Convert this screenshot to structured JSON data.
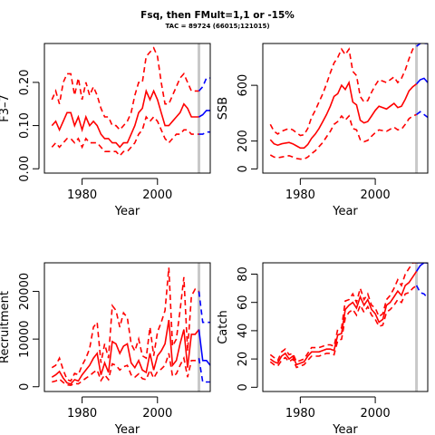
{
  "figure": {
    "title": "Fsq, then FMult=1,1 or -15%",
    "subtitle": "TAC = 89724 (66015;121015)"
  },
  "colors": {
    "historical": "#ff0000",
    "projection": "#0000ff",
    "divider": "#c8c8c8"
  },
  "chart_data": [
    {
      "id": "fbar",
      "type": "line",
      "ylabel": "F̄3–7",
      "xlabel": "Year",
      "xlim": [
        1970,
        2014
      ],
      "ylim": [
        -0.01,
        0.29
      ],
      "xticks": [
        1980,
        2000
      ],
      "yticks": [
        0.0,
        0.1,
        0.2
      ],
      "ytick_labels": [
        "0.00",
        "0.10",
        "0.20"
      ],
      "divider_x": 2011,
      "x": [
        1972,
        1973,
        1974,
        1975,
        1976,
        1977,
        1978,
        1979,
        1980,
        1981,
        1982,
        1983,
        1984,
        1985,
        1986,
        1987,
        1988,
        1989,
        1990,
        1991,
        1992,
        1993,
        1994,
        1995,
        1996,
        1997,
        1998,
        1999,
        2000,
        2001,
        2002,
        2003,
        2004,
        2005,
        2006,
        2007,
        2008,
        2009,
        2010,
        2011
      ],
      "series": [
        {
          "role": "median",
          "style": "solid",
          "values": [
            0.1,
            0.11,
            0.09,
            0.11,
            0.13,
            0.13,
            0.1,
            0.12,
            0.09,
            0.12,
            0.1,
            0.11,
            0.1,
            0.08,
            0.07,
            0.07,
            0.06,
            0.06,
            0.05,
            0.06,
            0.06,
            0.08,
            0.1,
            0.13,
            0.14,
            0.18,
            0.16,
            0.18,
            0.16,
            0.13,
            0.1,
            0.1,
            0.11,
            0.12,
            0.13,
            0.15,
            0.14,
            0.12,
            0.12,
            0.12
          ]
        },
        {
          "role": "upper",
          "style": "dashed",
          "values": [
            0.16,
            0.18,
            0.15,
            0.2,
            0.22,
            0.22,
            0.17,
            0.21,
            0.16,
            0.2,
            0.17,
            0.19,
            0.17,
            0.14,
            0.12,
            0.12,
            0.1,
            0.1,
            0.09,
            0.1,
            0.11,
            0.13,
            0.17,
            0.2,
            0.2,
            0.26,
            0.27,
            0.28,
            0.26,
            0.2,
            0.15,
            0.15,
            0.17,
            0.19,
            0.21,
            0.22,
            0.2,
            0.18,
            0.18,
            0.18
          ]
        },
        {
          "role": "lower",
          "style": "dashed",
          "values": [
            0.05,
            0.06,
            0.05,
            0.06,
            0.07,
            0.07,
            0.06,
            0.07,
            0.05,
            0.07,
            0.06,
            0.06,
            0.06,
            0.05,
            0.04,
            0.04,
            0.04,
            0.04,
            0.03,
            0.04,
            0.04,
            0.05,
            0.06,
            0.08,
            0.09,
            0.12,
            0.11,
            0.12,
            0.11,
            0.09,
            0.07,
            0.06,
            0.07,
            0.08,
            0.08,
            0.09,
            0.09,
            0.08,
            0.08,
            0.08
          ]
        }
      ],
      "projection": {
        "x": [
          2011,
          2012,
          2013,
          2014
        ],
        "series": [
          {
            "role": "median",
            "style": "solid",
            "values": [
              0.12,
              0.125,
              0.135,
              0.135
            ]
          },
          {
            "role": "upper",
            "style": "dashed",
            "values": [
              0.18,
              0.19,
              0.21,
              0.21
            ]
          },
          {
            "role": "lower",
            "style": "dashed",
            "values": [
              0.08,
              0.08,
              0.085,
              0.085
            ]
          }
        ]
      }
    },
    {
      "id": "ssb",
      "type": "line",
      "ylabel": "SSB",
      "xlabel": "Year",
      "xlim": [
        1970,
        2014
      ],
      "ylim": [
        -30,
        900
      ],
      "xticks": [
        1980,
        2000
      ],
      "yticks": [
        0,
        200,
        600
      ],
      "ytick_labels": [
        "0",
        "200",
        "600"
      ],
      "divider_x": 2011,
      "x": [
        1972,
        1973,
        1974,
        1975,
        1976,
        1977,
        1978,
        1979,
        1980,
        1981,
        1982,
        1983,
        1984,
        1985,
        1986,
        1987,
        1988,
        1989,
        1990,
        1991,
        1992,
        1993,
        1994,
        1995,
        1996,
        1997,
        1998,
        1999,
        2000,
        2001,
        2002,
        2003,
        2004,
        2005,
        2006,
        2007,
        2008,
        2009,
        2010,
        2011
      ],
      "series": [
        {
          "role": "median",
          "style": "solid",
          "values": [
            210,
            180,
            170,
            180,
            185,
            190,
            180,
            165,
            150,
            150,
            175,
            220,
            250,
            290,
            340,
            390,
            450,
            520,
            540,
            600,
            570,
            620,
            480,
            460,
            350,
            330,
            340,
            380,
            420,
            450,
            440,
            430,
            450,
            470,
            440,
            450,
            500,
            560,
            590,
            610
          ]
        },
        {
          "role": "upper",
          "style": "dashed",
          "values": [
            320,
            270,
            250,
            270,
            280,
            290,
            280,
            260,
            240,
            245,
            290,
            370,
            420,
            480,
            540,
            610,
            690,
            760,
            800,
            860,
            820,
            860,
            700,
            670,
            520,
            480,
            490,
            550,
            600,
            640,
            630,
            620,
            640,
            660,
            620,
            650,
            710,
            790,
            860,
            880
          ]
        },
        {
          "role": "lower",
          "style": "dashed",
          "values": [
            100,
            85,
            80,
            85,
            90,
            95,
            85,
            75,
            70,
            70,
            85,
            110,
            130,
            160,
            190,
            230,
            270,
            320,
            340,
            380,
            350,
            380,
            290,
            280,
            210,
            195,
            205,
            235,
            260,
            280,
            275,
            270,
            285,
            300,
            280,
            285,
            320,
            360,
            380,
            390
          ]
        }
      ],
      "projection": {
        "x": [
          2011,
          2012,
          2013,
          2014
        ],
        "series": [
          {
            "role": "median",
            "style": "solid",
            "values": [
              610,
              640,
              650,
              620
            ]
          },
          {
            "role": "upper",
            "style": "dashed",
            "values": [
              880,
              900,
              900,
              900
            ]
          },
          {
            "role": "lower",
            "style": "dashed",
            "values": [
              390,
              410,
              390,
              370
            ]
          }
        ]
      }
    },
    {
      "id": "recruitment",
      "type": "line",
      "ylabel": "Recruitment",
      "xlabel": "Year",
      "xlim": [
        1970,
        2014
      ],
      "ylim": [
        -1000,
        26000
      ],
      "xticks": [
        1980,
        2000
      ],
      "yticks": [
        0,
        10000,
        20000
      ],
      "ytick_labels": [
        "0",
        "10000",
        "20000"
      ],
      "divider_x": 2011,
      "x": [
        1972,
        1973,
        1974,
        1975,
        1976,
        1977,
        1978,
        1979,
        1980,
        1981,
        1982,
        1983,
        1984,
        1985,
        1986,
        1987,
        1988,
        1989,
        1990,
        1991,
        1992,
        1993,
        1994,
        1995,
        1996,
        1997,
        1998,
        1999,
        2000,
        2001,
        2002,
        2003,
        2004,
        2005,
        2006,
        2007,
        2008,
        2009,
        2010,
        2011
      ],
      "series": [
        {
          "role": "median",
          "style": "solid",
          "values": [
            2000,
            2500,
            3200,
            1800,
            800,
            600,
            1500,
            1200,
            2500,
            3500,
            4500,
            6000,
            7000,
            2500,
            5000,
            3000,
            9500,
            9000,
            7000,
            8500,
            9000,
            5000,
            4000,
            5500,
            3500,
            3000,
            7000,
            3500,
            6500,
            7500,
            9000,
            14000,
            4500,
            5500,
            9000,
            12000,
            4000,
            11000,
            11000,
            12000
          ]
        },
        {
          "role": "upper",
          "style": "dashed",
          "values": [
            4000,
            4500,
            6000,
            3500,
            1500,
            1200,
            2800,
            2500,
            4500,
            6000,
            8000,
            12500,
            13500,
            5000,
            9000,
            6000,
            17000,
            16000,
            12500,
            15500,
            14500,
            9000,
            7500,
            10000,
            6500,
            6000,
            12500,
            6500,
            11500,
            13500,
            16000,
            25000,
            8500,
            10000,
            16000,
            23000,
            7500,
            19000,
            20500,
            20000
          ]
        },
        {
          "role": "lower",
          "style": "dashed",
          "values": [
            1000,
            1200,
            1600,
            900,
            400,
            300,
            700,
            600,
            1200,
            1800,
            2300,
            3000,
            3500,
            1300,
            2500,
            1500,
            4800,
            4500,
            3500,
            4200,
            4500,
            2500,
            2000,
            2700,
            1700,
            1500,
            3500,
            1800,
            3200,
            3700,
            4500,
            7000,
            2200,
            2700,
            4500,
            6000,
            2000,
            5500,
            5500,
            6000
          ]
        }
      ],
      "projection": {
        "x": [
          2011,
          2012,
          2013,
          2014
        ],
        "series": [
          {
            "role": "median",
            "style": "solid",
            "values": [
              12000,
              5500,
              5500,
              4500
            ]
          },
          {
            "role": "upper",
            "style": "dashed",
            "values": [
              20000,
              13500,
              13500,
              13500
            ]
          },
          {
            "role": "lower",
            "style": "dashed",
            "values": [
              6000,
              1000,
              1000,
              1000
            ]
          }
        ]
      }
    },
    {
      "id": "catch",
      "type": "line",
      "ylabel": "Catch",
      "xlabel": "Year",
      "xlim": [
        1970,
        2014
      ],
      "ylim": [
        -3,
        88
      ],
      "xticks": [
        1980,
        2000
      ],
      "yticks": [
        0,
        20,
        40,
        60,
        80
      ],
      "ytick_labels": [
        "0",
        "20",
        "40",
        "60",
        "80"
      ],
      "divider_x": 2011,
      "x": [
        1972,
        1973,
        1974,
        1975,
        1976,
        1977,
        1978,
        1979,
        1980,
        1981,
        1982,
        1983,
        1984,
        1985,
        1986,
        1987,
        1988,
        1989,
        1990,
        1991,
        1992,
        1993,
        1994,
        1995,
        1996,
        1997,
        1998,
        1999,
        2000,
        2001,
        2002,
        2003,
        2004,
        2005,
        2006,
        2007,
        2008,
        2009,
        2010,
        2011
      ],
      "series": [
        {
          "role": "median",
          "style": "solid",
          "values": [
            20,
            18,
            17,
            22,
            24,
            20,
            22,
            16,
            17,
            18,
            22,
            25,
            25,
            25,
            26,
            27,
            27,
            26,
            37,
            38,
            55,
            58,
            60,
            56,
            64,
            58,
            62,
            55,
            52,
            46,
            48,
            58,
            60,
            64,
            68,
            65,
            72,
            74,
            78,
            82
          ]
        },
        {
          "role": "upper",
          "style": "dashed",
          "values": [
            23,
            21,
            19,
            25,
            27,
            23,
            24,
            18,
            19,
            20,
            24,
            28,
            28,
            28,
            29,
            30,
            30,
            29,
            41,
            42,
            61,
            62,
            66,
            60,
            70,
            62,
            66,
            58,
            56,
            50,
            52,
            62,
            65,
            70,
            76,
            72,
            80,
            84,
            88,
            88
          ]
        },
        {
          "role": "lower",
          "style": "dashed",
          "values": [
            18,
            16,
            15,
            19,
            21,
            18,
            20,
            14,
            15,
            16,
            19,
            22,
            22,
            22,
            23,
            24,
            24,
            23,
            33,
            34,
            49,
            53,
            55,
            51,
            58,
            53,
            57,
            51,
            48,
            43,
            44,
            53,
            55,
            58,
            62,
            60,
            66,
            67,
            70,
            72
          ]
        }
      ],
      "projection": {
        "x": [
          2011,
          2012,
          2013,
          2014
        ],
        "series": [
          {
            "role": "median",
            "style": "solid",
            "values": [
              82,
              86,
              88,
              88
            ]
          },
          {
            "role": "upper",
            "style": "dashed",
            "values": [
              88,
              88,
              88,
              88
            ]
          },
          {
            "role": "lower",
            "style": "dashed",
            "values": [
              72,
              67,
              66,
              63
            ]
          }
        ]
      }
    }
  ]
}
